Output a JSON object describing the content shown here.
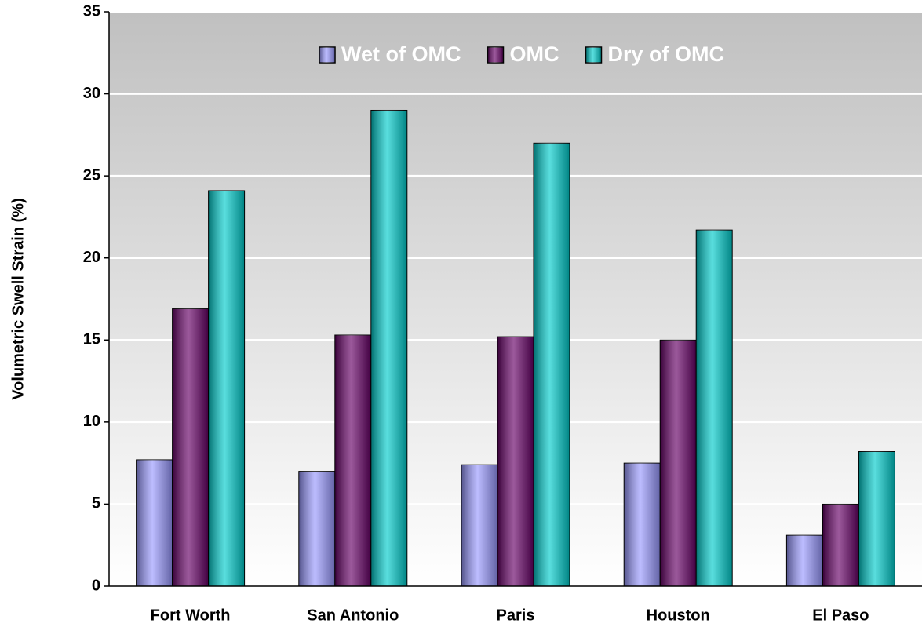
{
  "chart_data": {
    "type": "bar",
    "y_label": "Volumetric Swell Strain (%)",
    "categories": [
      "Fort Worth",
      "San Antonio",
      "Paris",
      "Houston",
      "El Paso"
    ],
    "series": [
      {
        "name": "Wet of OMC",
        "color": "#9999ff",
        "values": [
          7.7,
          7.0,
          7.4,
          7.5,
          3.1
        ]
      },
      {
        "name": "OMC",
        "color": "#660066",
        "values": [
          16.9,
          15.3,
          15.2,
          15.0,
          5.0
        ]
      },
      {
        "name": "Dry of OMC",
        "color": "#00cccc",
        "values": [
          24.1,
          29.0,
          27.0,
          21.7,
          8.2
        ]
      }
    ],
    "ylim": [
      0,
      35
    ],
    "yticks": [
      0,
      5,
      10,
      15,
      20,
      25,
      30,
      35
    ],
    "grid": true,
    "legend": "top"
  }
}
